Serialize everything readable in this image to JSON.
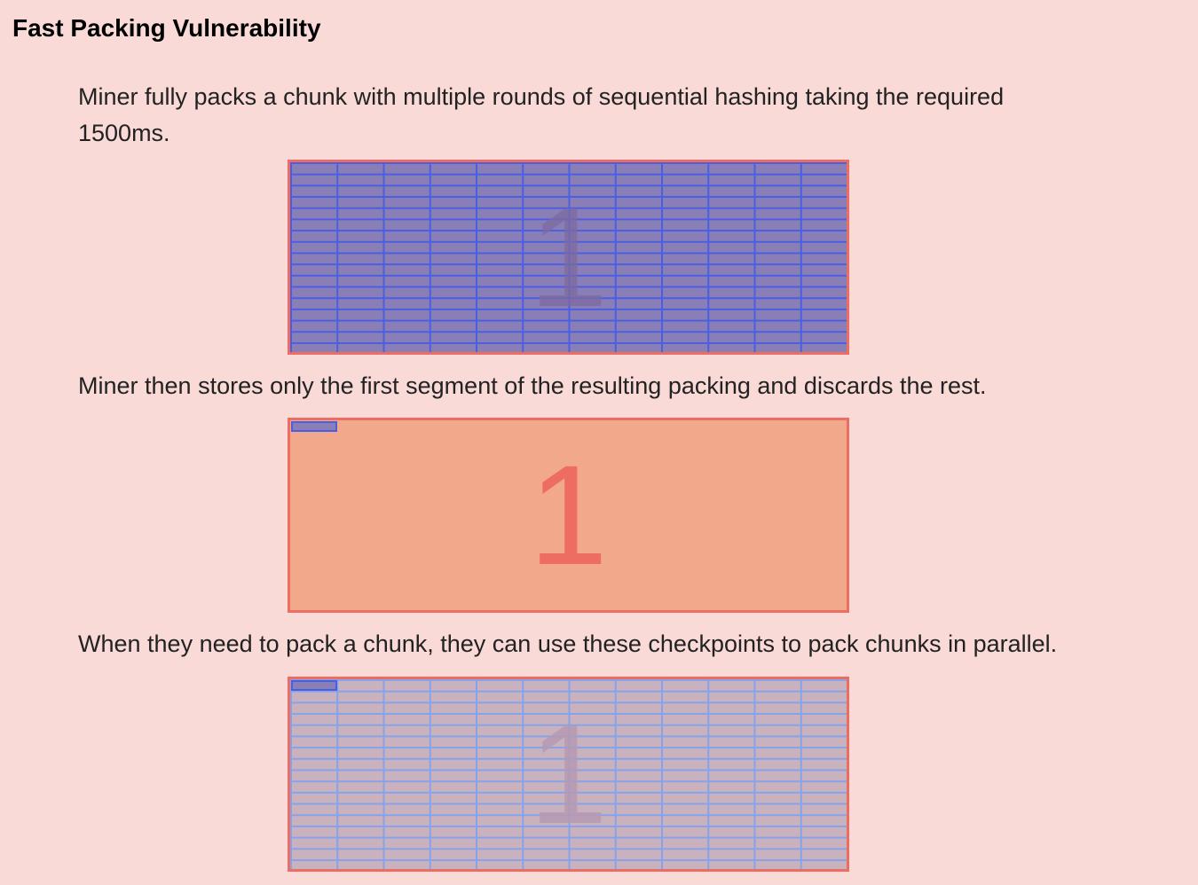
{
  "title": "Fast Packing Vulnerability",
  "paragraphs": [
    "Miner fully packs a chunk with multiple rounds of sequential hashing taking the required 1500ms.",
    "Miner then stores only the first segment of the resulting packing and discards the rest.",
    "When they need to pack a chunk, they can use these checkpoints to pack chunks in parallel."
  ],
  "chunks": [
    {
      "label": "1",
      "state": "fully packed"
    },
    {
      "label": "1",
      "state": "first segment stored"
    },
    {
      "label": "1",
      "state": "packing from checkpoints"
    }
  ],
  "colors": {
    "background": "#f9dad7",
    "chunk_border": "#ee6d62",
    "packed_fill": "#8a7eb6",
    "packed_grid": "#4a5ee3",
    "unpacked_fill": "#f2a88a",
    "parallel_fill": "#c9b1bd",
    "parallel_grid": "#84a3ea"
  }
}
